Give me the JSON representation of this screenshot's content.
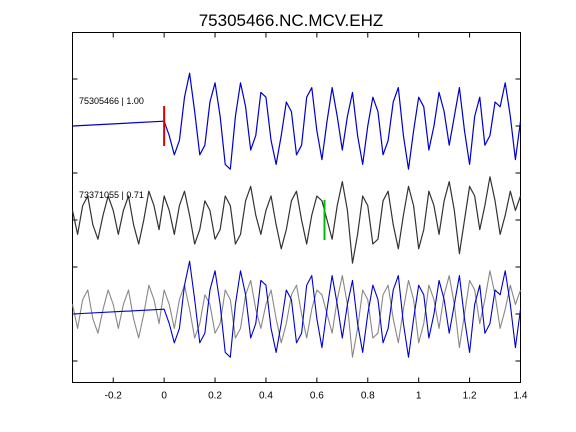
{
  "chart_data": {
    "type": "line",
    "title": "75305466.NC.MCV.EHZ",
    "xlabel": "",
    "ylabel": "",
    "xlim": [
      -0.36,
      1.4
    ],
    "x_ticks": [
      -0.2,
      0,
      0.2,
      0.4,
      0.6,
      0.8,
      1,
      1.2,
      1.4
    ],
    "x_tick_labels": [
      "-0.2",
      "0",
      "0.2",
      "0.4",
      "0.6",
      "0.8",
      "1",
      "1.2",
      "1.4"
    ],
    "grid": false,
    "legend": "none",
    "traces": [
      {
        "label": "75305466 | 1.00",
        "color": "#0000cc",
        "pick_time": 0.0,
        "pick_color": "#dd0000",
        "x": [
          -0.36,
          0.0,
          0.02,
          0.04,
          0.06,
          0.08,
          0.1,
          0.12,
          0.14,
          0.16,
          0.18,
          0.2,
          0.22,
          0.24,
          0.26,
          0.28,
          0.3,
          0.32,
          0.34,
          0.36,
          0.38,
          0.4,
          0.42,
          0.44,
          0.46,
          0.48,
          0.5,
          0.52,
          0.54,
          0.56,
          0.58,
          0.6,
          0.62,
          0.64,
          0.66,
          0.68,
          0.7,
          0.72,
          0.74,
          0.76,
          0.78,
          0.8,
          0.82,
          0.84,
          0.86,
          0.88,
          0.9,
          0.92,
          0.94,
          0.96,
          0.98,
          1.0,
          1.02,
          1.04,
          1.06,
          1.08,
          1.1,
          1.12,
          1.14,
          1.16,
          1.18,
          1.2,
          1.22,
          1.24,
          1.26,
          1.28,
          1.3,
          1.32,
          1.34,
          1.36,
          1.38,
          1.4
        ],
        "y": [
          0.0,
          0.1,
          -0.2,
          -0.6,
          -0.3,
          0.6,
          1.1,
          0.3,
          -0.6,
          -0.4,
          0.5,
          0.9,
          0.2,
          -0.8,
          -0.9,
          0.2,
          0.9,
          0.4,
          -0.5,
          -0.2,
          0.7,
          0.6,
          -0.3,
          -0.8,
          -0.2,
          0.5,
          0.3,
          -0.6,
          -0.4,
          0.6,
          0.8,
          -0.1,
          -0.7,
          0.1,
          0.8,
          0.2,
          -0.5,
          0.2,
          0.7,
          -0.2,
          -0.8,
          0.0,
          0.6,
          0.3,
          -0.6,
          -0.3,
          0.5,
          0.8,
          -0.2,
          -0.9,
          -0.1,
          0.6,
          0.4,
          -0.5,
          0.0,
          0.7,
          0.3,
          -0.4,
          0.2,
          0.8,
          -0.1,
          -0.8,
          0.2,
          0.6,
          -0.4,
          -0.2,
          0.5,
          0.4,
          0.9,
          0.2,
          -0.7,
          0.1
        ]
      },
      {
        "label": "73371055 | 0.71",
        "color": "#333333",
        "pick_time": 0.63,
        "pick_color": "#00bb00",
        "x": [
          -0.36,
          -0.34,
          -0.32,
          -0.3,
          -0.28,
          -0.26,
          -0.24,
          -0.22,
          -0.2,
          -0.18,
          -0.16,
          -0.14,
          -0.12,
          -0.1,
          -0.08,
          -0.06,
          -0.04,
          -0.02,
          0.0,
          0.02,
          0.04,
          0.06,
          0.08,
          0.1,
          0.12,
          0.14,
          0.16,
          0.18,
          0.2,
          0.22,
          0.24,
          0.26,
          0.28,
          0.3,
          0.32,
          0.34,
          0.36,
          0.38,
          0.4,
          0.42,
          0.44,
          0.46,
          0.48,
          0.5,
          0.52,
          0.54,
          0.56,
          0.58,
          0.6,
          0.62,
          0.64,
          0.66,
          0.68,
          0.7,
          0.72,
          0.74,
          0.76,
          0.78,
          0.8,
          0.82,
          0.84,
          0.86,
          0.88,
          0.9,
          0.92,
          0.94,
          0.96,
          0.98,
          1.0,
          1.02,
          1.04,
          1.06,
          1.08,
          1.1,
          1.12,
          1.14,
          1.16,
          1.18,
          1.2,
          1.22,
          1.24,
          1.26,
          1.28,
          1.3,
          1.32,
          1.34,
          1.36,
          1.38,
          1.4
        ],
        "y": [
          0.2,
          -0.3,
          0.3,
          0.5,
          -0.1,
          -0.4,
          0.1,
          0.5,
          0.2,
          -0.3,
          0.2,
          0.5,
          -0.1,
          -0.5,
          0.0,
          0.6,
          0.3,
          -0.2,
          0.5,
          0.2,
          -0.3,
          0.3,
          0.6,
          0.1,
          -0.5,
          -0.2,
          0.4,
          0.2,
          -0.4,
          -0.2,
          0.5,
          0.3,
          -0.5,
          -0.3,
          0.4,
          0.7,
          0.1,
          -0.3,
          0.2,
          0.5,
          -0.1,
          -0.6,
          -0.2,
          0.4,
          0.6,
          0.0,
          -0.5,
          0.1,
          0.5,
          0.4,
          0.0,
          -0.4,
          0.3,
          0.8,
          0.2,
          -0.9,
          -0.3,
          0.5,
          0.3,
          -0.5,
          -0.4,
          0.4,
          0.6,
          -0.1,
          -0.6,
          0.1,
          0.7,
          0.3,
          -0.6,
          -0.2,
          0.6,
          0.3,
          -0.3,
          0.4,
          0.8,
          0.2,
          -0.7,
          0.0,
          0.7,
          0.5,
          -0.2,
          0.3,
          0.9,
          0.4,
          -0.3,
          0.1,
          0.6,
          0.2,
          0.5
        ]
      }
    ],
    "overlay": {
      "series": [
        {
          "source_trace": 0,
          "color": "#0000cc"
        },
        {
          "source_trace": 1,
          "color": "#888888"
        }
      ]
    }
  }
}
